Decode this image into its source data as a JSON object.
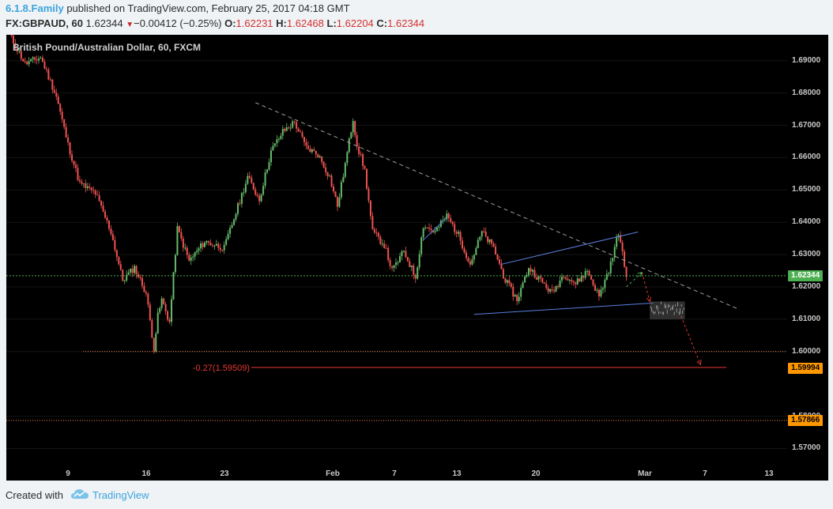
{
  "header": {
    "brand": "6.1.8.Family",
    "published": " published on TradingView.com, February 25, 2017 04:18 GMT",
    "symbol": "FX:GBPAUD, 60",
    "last": "1.62344",
    "change": "−0.00412 (−0.25%)",
    "o_label": "O:",
    "o_value": "1.62231",
    "h_label": "H:",
    "h_value": "1.62468",
    "l_label": "L:",
    "l_value": "1.62204",
    "c_label": "C:",
    "c_value": "1.62344"
  },
  "footer": {
    "created": "Created with",
    "brand": "TradingView"
  },
  "colors": {
    "background": "#000000",
    "up": "#66bb6a",
    "down": "#ef5350",
    "trend_lines": "#5b7fde",
    "dashed_resistance": "#9e9e9e",
    "last_price": "#4caf50",
    "support_levels": "#ff8a50",
    "target": "#e53935",
    "badge_last": "#4caf50",
    "badge_level": "#ff9800"
  },
  "chart_data": {
    "type": "candlestick",
    "title": "British Pound/Australian Dollar, 60, FXCM",
    "x_ticks": [
      "9",
      "16",
      "23",
      "Feb",
      "7",
      "13",
      "20",
      "Mar",
      "7",
      "13"
    ],
    "y_ticks": [
      "1.69000",
      "1.68000",
      "1.67000",
      "1.66000",
      "1.65000",
      "1.64000",
      "1.63000",
      "1.62000",
      "1.61000",
      "1.60000",
      "1.58000",
      "1.57000"
    ],
    "ylim": [
      1.564,
      1.698
    ],
    "price_path": [
      {
        "t": 0,
        "price": 1.698
      },
      {
        "t": 4,
        "price": 1.689
      },
      {
        "t": 8,
        "price": 1.691
      },
      {
        "t": 12,
        "price": 1.679
      },
      {
        "t": 15,
        "price": 1.664
      },
      {
        "t": 18,
        "price": 1.652
      },
      {
        "t": 22,
        "price": 1.649
      },
      {
        "t": 26,
        "price": 1.637
      },
      {
        "t": 29,
        "price": 1.622
      },
      {
        "t": 32,
        "price": 1.626
      },
      {
        "t": 35,
        "price": 1.618
      },
      {
        "t": 37,
        "price": 1.601
      },
      {
        "t": 38,
        "price": 1.611
      },
      {
        "t": 39,
        "price": 1.616
      },
      {
        "t": 41,
        "price": 1.609
      },
      {
        "t": 43,
        "price": 1.638
      },
      {
        "t": 46,
        "price": 1.628
      },
      {
        "t": 50,
        "price": 1.634
      },
      {
        "t": 55,
        "price": 1.632
      },
      {
        "t": 58,
        "price": 1.643
      },
      {
        "t": 61,
        "price": 1.654
      },
      {
        "t": 64,
        "price": 1.647
      },
      {
        "t": 67,
        "price": 1.662
      },
      {
        "t": 70,
        "price": 1.668
      },
      {
        "t": 73,
        "price": 1.671
      },
      {
        "t": 76,
        "price": 1.663
      },
      {
        "t": 79,
        "price": 1.661
      },
      {
        "t": 82,
        "price": 1.654
      },
      {
        "t": 84,
        "price": 1.645
      },
      {
        "t": 86,
        "price": 1.658
      },
      {
        "t": 88,
        "price": 1.672
      },
      {
        "t": 89,
        "price": 1.664
      },
      {
        "t": 91,
        "price": 1.656
      },
      {
        "t": 93,
        "price": 1.637
      },
      {
        "t": 96,
        "price": 1.633
      },
      {
        "t": 98,
        "price": 1.625
      },
      {
        "t": 101,
        "price": 1.631
      },
      {
        "t": 104,
        "price": 1.623
      },
      {
        "t": 106,
        "price": 1.639
      },
      {
        "t": 109,
        "price": 1.637
      },
      {
        "t": 112,
        "price": 1.642
      },
      {
        "t": 115,
        "price": 1.636
      },
      {
        "t": 118,
        "price": 1.627
      },
      {
        "t": 121,
        "price": 1.637
      },
      {
        "t": 124,
        "price": 1.632
      },
      {
        "t": 127,
        "price": 1.622
      },
      {
        "t": 130,
        "price": 1.616
      },
      {
        "t": 133,
        "price": 1.626
      },
      {
        "t": 136,
        "price": 1.622
      },
      {
        "t": 139,
        "price": 1.618
      },
      {
        "t": 142,
        "price": 1.624
      },
      {
        "t": 145,
        "price": 1.621
      },
      {
        "t": 148,
        "price": 1.625
      },
      {
        "t": 151,
        "price": 1.617
      },
      {
        "t": 154,
        "price": 1.627
      },
      {
        "t": 156,
        "price": 1.637
      },
      {
        "t": 158,
        "price": 1.623
      }
    ],
    "annotations": {
      "resistance_line": [
        {
          "t": 63,
          "price": 1.677
        },
        {
          "t": 187,
          "price": 1.613
        }
      ],
      "upper_channel": [
        {
          "t": 126,
          "price": 1.627
        },
        {
          "t": 161,
          "price": 1.637
        }
      ],
      "lower_channel": [
        {
          "t": 119,
          "price": 1.6115
        },
        {
          "t": 165,
          "price": 1.615
        }
      ],
      "mini_trend": [
        {
          "t": 106,
          "price": 1.6345
        },
        {
          "t": 112,
          "price": 1.6415
        }
      ],
      "level_1": 1.6,
      "level_2": 1.57866,
      "target_level": 1.59509,
      "target_label": "-0.27(1.59509)",
      "last_price": 1.62344,
      "last_price_label": "1.62344",
      "level_1_label": "1.59994",
      "level_2_label": "1.57866",
      "projection_box": {
        "t0": 164,
        "t1": 173,
        "price_top": 1.6155,
        "price_bottom": 1.61
      },
      "projection_path": [
        {
          "t": 158,
          "price": 1.62
        },
        {
          "t": 162,
          "price": 1.6245
        },
        {
          "t": 164,
          "price": 1.6155
        },
        {
          "t": 172,
          "price": 1.611
        },
        {
          "t": 177,
          "price": 1.596
        }
      ]
    }
  }
}
